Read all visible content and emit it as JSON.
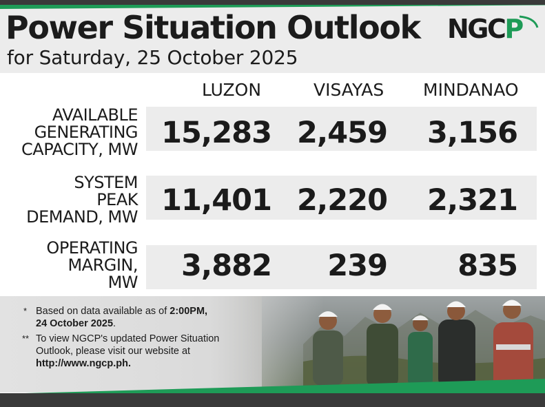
{
  "header": {
    "title": "Power Situation Outlook",
    "subtitle": "for Saturday, 25 October 2025",
    "logo_text": "NGCP"
  },
  "columns": [
    "LUZON",
    "VISAYAS",
    "MINDANAO"
  ],
  "rows": [
    {
      "label_lines": [
        "AVAILABLE",
        "GENERATING",
        "CAPACITY, MW"
      ],
      "values": [
        "15,283",
        "2,459",
        "3,156"
      ]
    },
    {
      "label_lines": [
        "SYSTEM",
        "PEAK",
        "DEMAND, MW"
      ],
      "values": [
        "11,401",
        "2,220",
        "2,321"
      ]
    },
    {
      "label_lines": [
        "OPERATING",
        "MARGIN,",
        "MW"
      ],
      "values": [
        "3,882",
        "239",
        "835"
      ]
    }
  ],
  "notes": {
    "note1_marker": "*",
    "note1_text": "Based on data available as of ",
    "note1_time": "2:00PM,",
    "note1_date": "24 October 2025",
    "note1_end": ".",
    "note2_marker": "**",
    "note2_line1": "To view NGCP's updated Power Situation",
    "note2_line2": "Outlook, please visit our website at",
    "note2_url": "http://www.ngcp.ph."
  },
  "colors": {
    "brand_green": "#1e9b57",
    "dark": "#1b1b1b",
    "band_gray": "#ececec",
    "bar_gray": "#3a3a3a"
  },
  "icons": [
    "ngcp-logo"
  ]
}
